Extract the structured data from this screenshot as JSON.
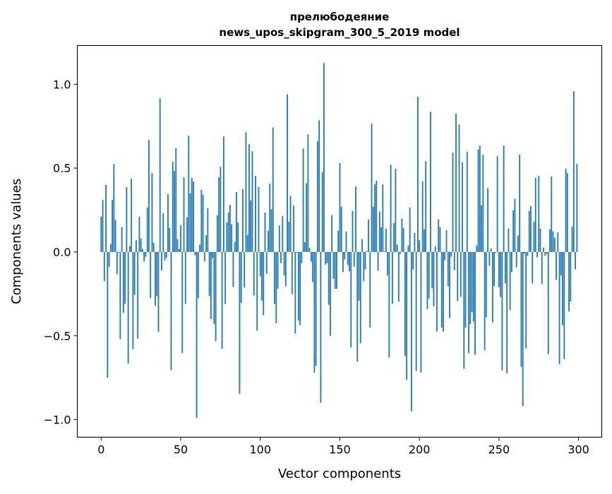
{
  "chart_data": {
    "type": "bar",
    "title_line1": "прелюбодеяние",
    "title_line2": "news_upos_skipgram_300_5_2019 model",
    "xlabel": "Vector components",
    "ylabel": "Components values",
    "xlim": [
      -15,
      314.6
    ],
    "ylim": [
      -1.105,
      1.231
    ],
    "xticks": [
      0,
      50,
      100,
      150,
      200,
      250,
      300
    ],
    "xtick_labels": [
      "0",
      "50",
      "100",
      "150",
      "200",
      "250",
      "300"
    ],
    "yticks": [
      -1.0,
      -0.5,
      0.0,
      0.5,
      1.0
    ],
    "ytick_labels": [
      "−1.0",
      "−0.5",
      "0.0",
      "0.5",
      "1.0"
    ],
    "grid": false,
    "bar_color": "#1f77b4",
    "values": [
      0.21,
      0.31,
      -0.175,
      0.4,
      -0.75,
      -0.09,
      0.046,
      0.31,
      0.525,
      0.19,
      -0.133,
      -0.005,
      -0.52,
      0.147,
      -0.364,
      -0.31,
      0.387,
      -0.667,
      0.034,
      0.437,
      -0.58,
      -0.256,
      0.07,
      -0.517,
      0.21,
      0.08,
      0.017,
      -0.057,
      -0.03,
      0.265,
      0.668,
      -0.276,
      0.47,
      0.055,
      -0.32,
      -0.263,
      -0.477,
      0.916,
      -0.11,
      0.23,
      -0.05,
      -0.036,
      0.345,
      0.143,
      -0.705,
      0.538,
      0.483,
      0.618,
      0.076,
      0.017,
      0.16,
      -0.604,
      0.445,
      -0.31,
      0.206,
      0.693,
      0.349,
      0.441,
      0.42,
      -0.02,
      -0.99,
      -0.276,
      0.042,
      0.37,
      0.34,
      -0.057,
      0.1,
      0.26,
      -0.263,
      -0.4,
      -0.036,
      -0.43,
      -0.532,
      0.218,
      0.445,
      0.508,
      -0.578,
      0.689,
      -0.31,
      0.176,
      0.235,
      0.28,
      0.164,
      -0.209,
      0.059,
      0.357,
      0.176,
      -0.845,
      -0.305,
      0.374,
      -0.213,
      0.714,
      0.1,
      0.643,
      0.307,
      0.6,
      -0.26,
      0.454,
      -0.47,
      0.387,
      -0.146,
      -0.29,
      -0.377,
      0.235,
      -0.13,
      0.126,
      0.407,
      0.255,
      0.742,
      -0.31,
      -0.425,
      -0.22,
      0.158,
      -0.067,
      0.214,
      -0.14,
      -0.205,
      0.94,
      0.18,
      0.335,
      -0.252,
      0.276,
      -0.487,
      -0.005,
      -0.41,
      -0.437,
      -0.067,
      0.617,
      0.058,
      0.41,
      0.7,
      0.024,
      -0.058,
      -0.18,
      -0.72,
      -0.68,
      0.66,
      0.785,
      -0.9,
      0.475,
      1.126,
      -0.075,
      -0.067,
      -0.315,
      -0.5,
      0.22,
      -0.16,
      -0.22,
      -0.22,
      0.126,
      0.53,
      0.27,
      -0.12,
      -0.045,
      0.122,
      -0.078,
      -0.116,
      -0.57,
      0.244,
      -0.087,
      0.39,
      -0.654,
      -0.29,
      -0.545,
      0.076,
      -0.175,
      -0.104,
      0.005,
      0.193,
      -0.452,
      0.765,
      0.27,
      0.403,
      0.424,
      -0.112,
      0.24,
      0.147,
      0.403,
      0.005,
      0.139,
      -0.141,
      -0.63,
      0.52,
      -0.31,
      0.172,
      0.496,
      0.042,
      -0.297,
      -0.011,
      0.2,
      0.143,
      -0.62,
      -0.763,
      0.038,
      0.265,
      -0.95,
      -0.104,
      0.113,
      -0.71,
      0.925,
      0.07,
      -0.72,
      0.42,
      0.134,
      0.54,
      -0.34,
      -0.277,
      0.836,
      -0.217,
      -0.325,
      0.034,
      -0.475,
      0.193,
      0.147,
      -0.452,
      -0.475,
      -0.05,
      0.13,
      -0.205,
      -0.394,
      -0.028,
      0.592,
      -0.108,
      0.824,
      -0.293,
      0.76,
      -0.268,
      0.534,
      -0.697,
      -0.452,
      0.597,
      -0.604,
      -0.43,
      -0.36,
      -0.415,
      -0.613,
      0.038,
      0.61,
      0.634,
      0.277,
      0.58,
      -0.587,
      -0.39,
      0.382,
      -0.083,
      0.021,
      -0.42,
      -0.205,
      -0.007,
      0.571,
      -0.21,
      -0.268,
      -0.706,
      0.634,
      -0.188,
      -0.725,
      0.139,
      -0.347,
      -0.12,
      0.248,
      0.315,
      -0.091,
      0.097,
      0.58,
      -0.685,
      -0.92,
      -0.011,
      -0.575,
      -0.024,
      0.244,
      0.273,
      -0.188,
      0.18,
      0.441,
      -0.032,
      0.454,
      0.139,
      -0.192,
      0.025,
      -0.024,
      -0.011,
      -0.61,
      0.134,
      0.45,
      0.122,
      0.084,
      -0.167,
      0.118,
      -0.67,
      -0.141,
      -0.437,
      -0.64,
      0.496,
      0.47,
      -0.355,
      -0.296,
      0.151,
      0.958,
      -0.104,
      0.525
    ]
  }
}
